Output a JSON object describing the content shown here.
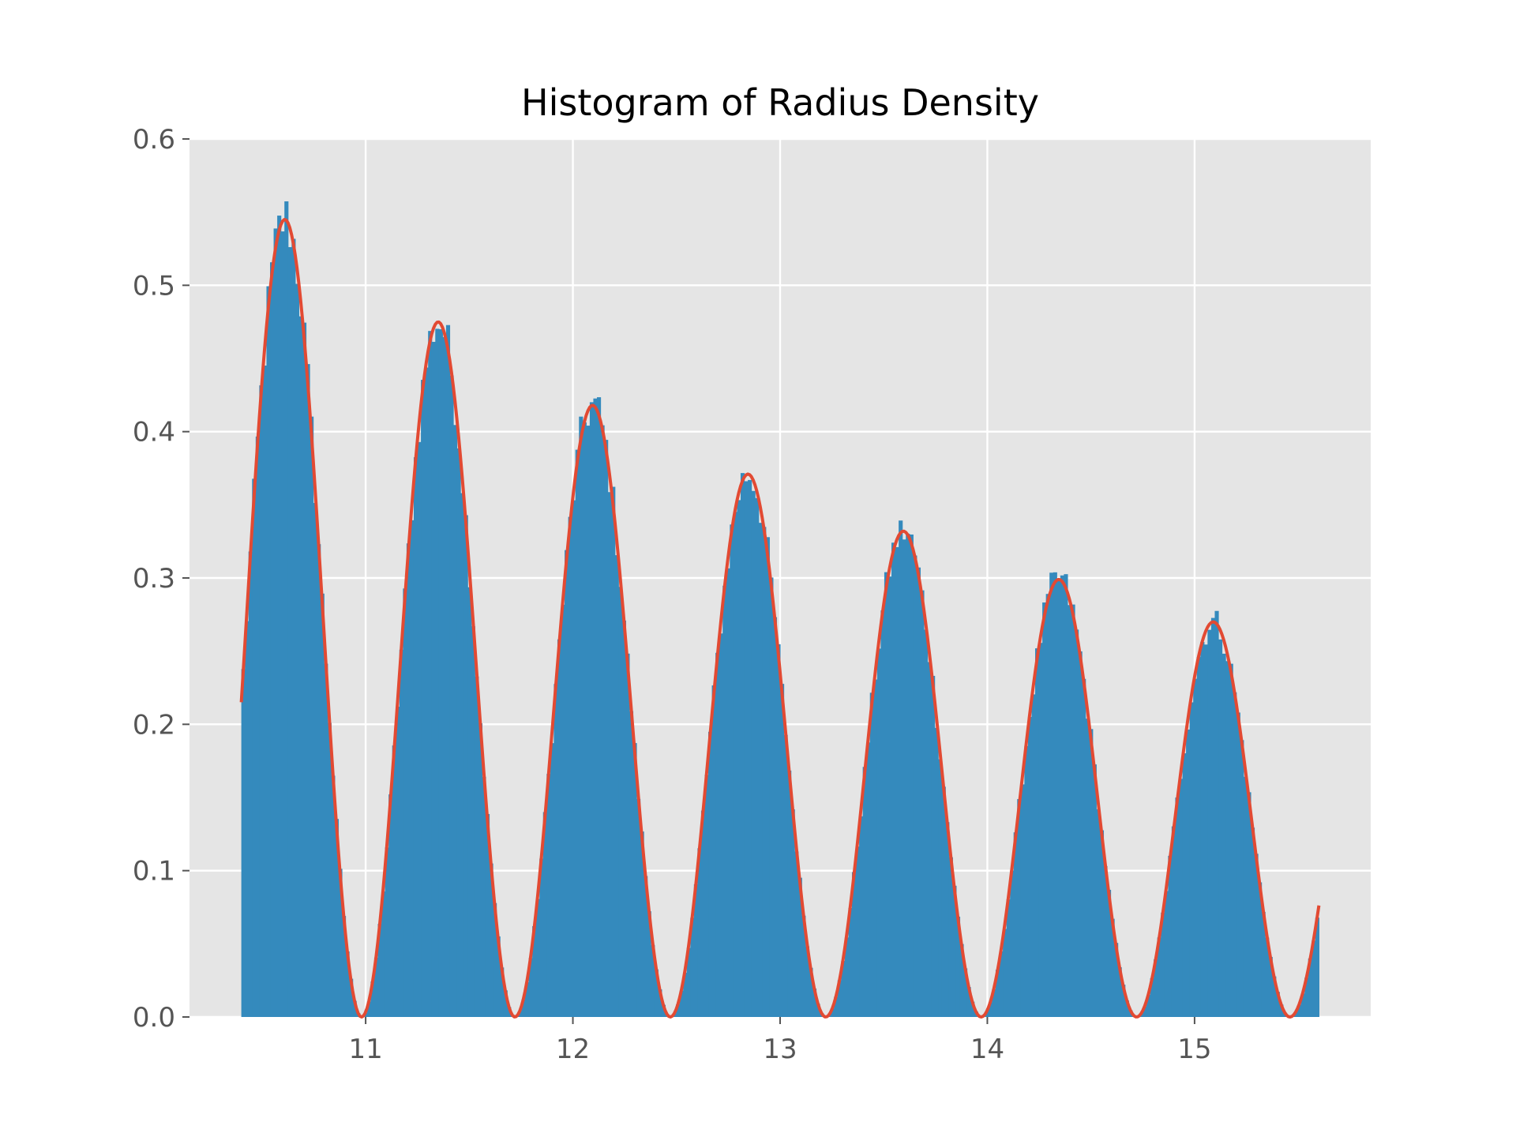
{
  "chart_data": {
    "type": "histogram",
    "title": "Histogram of Radius Density",
    "xlabel": "",
    "ylabel": "",
    "xlim": [
      10.15,
      15.85
    ],
    "ylim": [
      0,
      0.6
    ],
    "x_ticks": [
      11,
      12,
      13,
      14,
      15
    ],
    "y_ticks": [
      0.0,
      0.1,
      0.2,
      0.3,
      0.4,
      0.5,
      0.6
    ],
    "x_tick_labels": [
      "11",
      "12",
      "13",
      "14",
      "15"
    ],
    "y_tick_labels": [
      "0.0",
      "0.1",
      "0.2",
      "0.3",
      "0.4",
      "0.5",
      "0.6"
    ],
    "grid": true,
    "legend": "none",
    "histogram": {
      "range": [
        10.4,
        15.6
      ],
      "bins": 300,
      "peak_centers": [
        10.6,
        11.35,
        12.1,
        12.85,
        13.6,
        14.35,
        15.09
      ],
      "peak_heights": [
        0.545,
        0.475,
        0.418,
        0.371,
        0.332,
        0.299,
        0.27
      ],
      "zeros": [
        10.98,
        11.72,
        12.47,
        13.22,
        13.97,
        14.72,
        15.46
      ],
      "color": "#348ABD"
    },
    "fit_curve": {
      "x_range": [
        10.4,
        15.6
      ],
      "color": "#E24A33",
      "start_value": 0.228,
      "end_value": 0.083
    },
    "colors": {
      "axes_background": "#E5E5E5",
      "grid": "#FFFFFF",
      "tick_label": "#555555",
      "title": "#000000"
    }
  }
}
